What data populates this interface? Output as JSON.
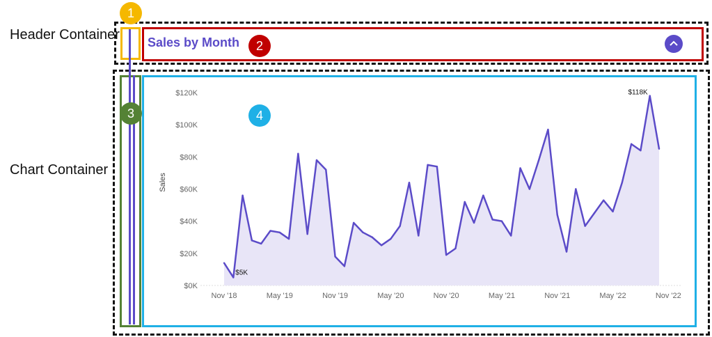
{
  "labels": {
    "header_container": "Header Container",
    "chart_container": "Chart Container"
  },
  "badges": [
    "1",
    "2",
    "3",
    "4"
  ],
  "header": {
    "title": "Sales by Month"
  },
  "icons": {
    "collapse": "chevron-up-icon"
  },
  "colors": {
    "accent": "#5b4bc8",
    "fill": "#e8e5f7",
    "badge1": "#f5b800",
    "badge2": "#c00000",
    "badge3": "#548235",
    "badge4": "#1fb0e6"
  },
  "chart_data": {
    "type": "area",
    "title": "",
    "xlabel": "",
    "ylabel": "Sales",
    "ylim": [
      0,
      120000
    ],
    "y_ticks": [
      0,
      20000,
      40000,
      60000,
      80000,
      100000,
      120000
    ],
    "y_tick_labels": [
      "$0K",
      "$20K",
      "$40K",
      "$60K",
      "$80K",
      "$100K",
      "$120K"
    ],
    "x_tick_labels": [
      "Nov '18",
      "May '19",
      "Nov '19",
      "May '20",
      "Nov '20",
      "May '21",
      "Nov '21",
      "May '22",
      "Nov '22"
    ],
    "x_tick_indices": [
      0,
      6,
      12,
      18,
      24,
      30,
      36,
      42,
      48
    ],
    "values": [
      14000,
      5000,
      56000,
      28000,
      26000,
      34000,
      33000,
      29000,
      82000,
      32000,
      78000,
      72000,
      18000,
      12000,
      39000,
      33000,
      30000,
      25000,
      29000,
      37000,
      64000,
      31000,
      75000,
      74000,
      19000,
      23000,
      52000,
      39000,
      56000,
      41000,
      40000,
      31000,
      73000,
      60000,
      78000,
      97000,
      44000,
      21000,
      60000,
      37000,
      45000,
      53000,
      46000,
      64000,
      88000,
      84000,
      118000,
      85000
    ],
    "annotations": [
      {
        "text": "$5K",
        "index": 1
      },
      {
        "text": "$118K",
        "index": 46
      }
    ]
  }
}
